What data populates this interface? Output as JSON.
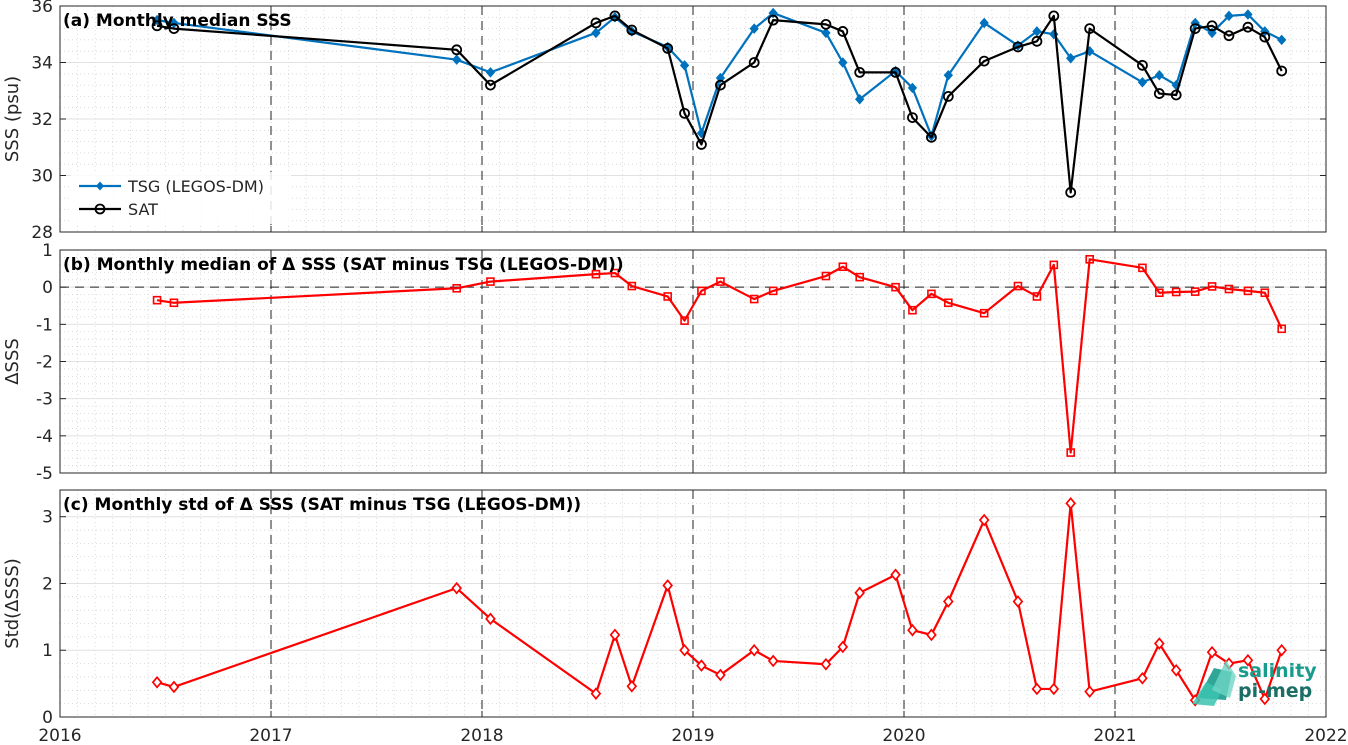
{
  "chart_data": [
    {
      "type": "line",
      "title": "(a) Monthly median SSS",
      "xlabel": "",
      "ylabel": "SSS (psu)",
      "ylim": [
        28,
        36
      ],
      "yticks": [
        28,
        30,
        32,
        34,
        36
      ],
      "xlim": [
        2016,
        2022
      ],
      "xticks": [
        2016,
        2017,
        2018,
        2019,
        2020,
        2021,
        2022
      ],
      "grid": true,
      "legend": "bottom-left",
      "series": [
        {
          "name": "TSG (LEGOS-DM)",
          "color": "#0072BD",
          "marker": "filled-diamond",
          "x": [
            2016.46,
            2016.54,
            2017.88,
            2018.04,
            2018.54,
            2018.63,
            2018.71,
            2018.88,
            2018.96,
            2019.04,
            2019.13,
            2019.29,
            2019.38,
            2019.63,
            2019.71,
            2019.79,
            2019.96,
            2020.04,
            2020.13,
            2020.21,
            2020.38,
            2020.54,
            2020.63,
            2020.71,
            2020.79,
            2020.88,
            2021.13,
            2021.21,
            2021.29,
            2021.38,
            2021.46,
            2021.54,
            2021.63,
            2021.71,
            2021.79
          ],
          "y": [
            35.5,
            35.4,
            34.1,
            33.65,
            35.05,
            35.6,
            35.1,
            34.55,
            33.9,
            31.5,
            33.45,
            35.2,
            35.75,
            35.05,
            34.0,
            32.7,
            33.7,
            33.1,
            31.4,
            33.55,
            35.4,
            34.6,
            35.1,
            35.0,
            34.15,
            34.4,
            33.3,
            33.55,
            33.2,
            35.4,
            35.05,
            35.65,
            35.7,
            35.1,
            34.8
          ]
        },
        {
          "name": "SAT",
          "color": "#000000",
          "marker": "open-circle",
          "x": [
            2016.46,
            2016.54,
            2017.88,
            2018.04,
            2018.54,
            2018.63,
            2018.71,
            2018.88,
            2018.96,
            2019.04,
            2019.13,
            2019.29,
            2019.38,
            2019.63,
            2019.71,
            2019.79,
            2019.96,
            2020.04,
            2020.13,
            2020.21,
            2020.38,
            2020.54,
            2020.63,
            2020.71,
            2020.79,
            2020.88,
            2021.13,
            2021.21,
            2021.29,
            2021.38,
            2021.46,
            2021.54,
            2021.63,
            2021.71,
            2021.79
          ],
          "y": [
            35.3,
            35.2,
            34.45,
            33.2,
            35.4,
            35.65,
            35.15,
            34.5,
            32.2,
            31.1,
            33.2,
            34.0,
            35.5,
            35.35,
            35.1,
            33.65,
            33.65,
            32.05,
            31.35,
            32.8,
            34.05,
            34.55,
            34.75,
            35.65,
            29.4,
            35.2,
            33.9,
            32.9,
            32.85,
            35.2,
            35.3,
            34.95,
            35.25,
            34.9,
            33.7
          ]
        }
      ]
    },
    {
      "type": "line",
      "title": "(b) Monthly median of Δ SSS (SAT minus TSG (LEGOS-DM))",
      "xlabel": "",
      "ylabel": "ΔSSS",
      "ylim": [
        -5,
        1
      ],
      "yticks": [
        -5,
        -4,
        -3,
        -2,
        -1,
        0,
        1
      ],
      "xlim": [
        2016,
        2022
      ],
      "xticks": [
        2016,
        2017,
        2018,
        2019,
        2020,
        2021,
        2022
      ],
      "grid": true,
      "zero_line": true,
      "series": [
        {
          "color": "#FF0000",
          "marker": "open-square",
          "x": [
            2016.46,
            2016.54,
            2017.88,
            2018.04,
            2018.54,
            2018.63,
            2018.71,
            2018.88,
            2018.96,
            2019.04,
            2019.13,
            2019.29,
            2019.38,
            2019.63,
            2019.71,
            2019.79,
            2019.96,
            2020.04,
            2020.13,
            2020.21,
            2020.38,
            2020.54,
            2020.63,
            2020.71,
            2020.79,
            2020.88,
            2021.13,
            2021.21,
            2021.29,
            2021.38,
            2021.46,
            2021.54,
            2021.63,
            2021.71,
            2021.79
          ],
          "y": [
            -0.35,
            -0.42,
            -0.03,
            0.15,
            0.35,
            0.38,
            0.03,
            -0.25,
            -0.9,
            -0.1,
            0.15,
            -0.32,
            -0.1,
            0.3,
            0.55,
            0.27,
            0.0,
            -0.62,
            -0.18,
            -0.42,
            -0.7,
            0.03,
            -0.25,
            0.6,
            -4.45,
            0.75,
            0.52,
            -0.15,
            -0.13,
            -0.12,
            0.02,
            -0.05,
            -0.1,
            -0.15,
            -1.12
          ]
        }
      ]
    },
    {
      "type": "line",
      "title": "(c) Monthly std of Δ SSS (SAT minus TSG (LEGOS-DM))",
      "xlabel": "",
      "ylabel": "Std(ΔSSS)",
      "ylim": [
        0,
        3.4
      ],
      "yticks": [
        0,
        1,
        2,
        3
      ],
      "xlim": [
        2016,
        2022
      ],
      "xticks": [
        2016,
        2017,
        2018,
        2019,
        2020,
        2021,
        2022
      ],
      "grid": true,
      "series": [
        {
          "color": "#FF0000",
          "marker": "open-diamond",
          "x": [
            2016.46,
            2016.54,
            2017.88,
            2018.04,
            2018.54,
            2018.63,
            2018.71,
            2018.88,
            2018.96,
            2019.04,
            2019.13,
            2019.29,
            2019.38,
            2019.63,
            2019.71,
            2019.79,
            2019.96,
            2020.04,
            2020.13,
            2020.21,
            2020.38,
            2020.54,
            2020.63,
            2020.71,
            2020.79,
            2020.88,
            2021.13,
            2021.21,
            2021.29,
            2021.38,
            2021.46,
            2021.54,
            2021.63,
            2021.71,
            2021.79
          ],
          "y": [
            0.52,
            0.45,
            1.93,
            1.47,
            0.35,
            1.23,
            0.46,
            1.97,
            1.0,
            0.77,
            0.63,
            1.0,
            0.84,
            0.79,
            1.05,
            1.86,
            2.13,
            1.3,
            1.23,
            1.73,
            2.95,
            1.73,
            0.42,
            0.42,
            3.2,
            0.38,
            0.58,
            1.1,
            0.7,
            0.25,
            0.97,
            0.8,
            0.85,
            0.27,
            1.0
          ]
        }
      ]
    }
  ],
  "logo": {
    "line1": "salinity",
    "line2": "pi-mep",
    "colors": [
      "#1a9c8c",
      "#3cc3b0",
      "#6fd6c6"
    ]
  }
}
